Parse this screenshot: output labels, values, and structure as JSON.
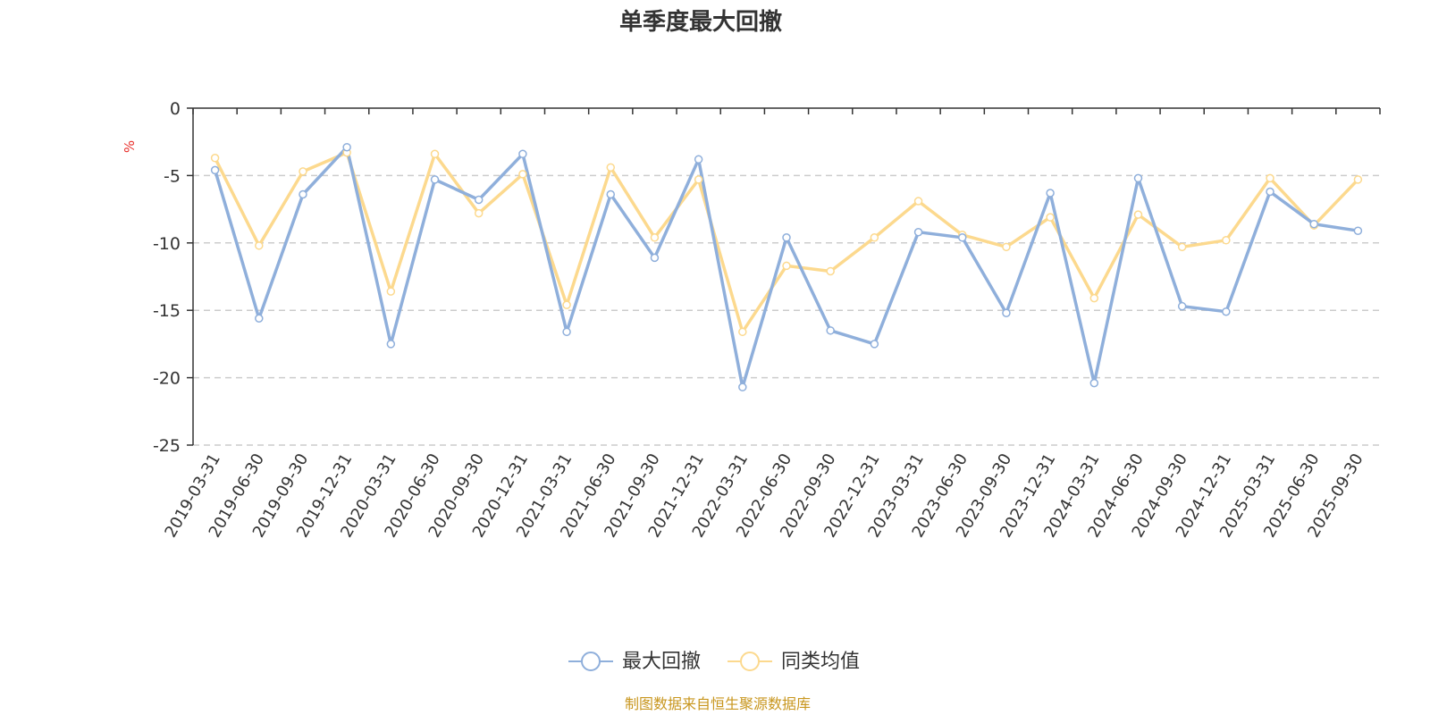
{
  "chart_data": {
    "type": "line",
    "title": "单季度最大回撤",
    "ylabel": "%",
    "ylim": [
      -25,
      0
    ],
    "yticks": [
      0,
      -5,
      -10,
      -15,
      -20,
      -25
    ],
    "grid": "horizontal dashed",
    "legend_position": "bottom-center",
    "categories": [
      "2019-03-31",
      "2019-06-30",
      "2019-09-30",
      "2019-12-31",
      "2020-03-31",
      "2020-06-30",
      "2020-09-30",
      "2020-12-31",
      "2021-03-31",
      "2021-06-30",
      "2021-09-30",
      "2021-12-31",
      "2022-03-31",
      "2022-06-30",
      "2022-09-30",
      "2022-12-31",
      "2023-03-31",
      "2023-06-30",
      "2023-09-30",
      "2023-12-31",
      "2024-03-31",
      "2024-06-30",
      "2024-09-30",
      "2024-12-31",
      "2025-03-31",
      "2025-06-30",
      "2025-09-30"
    ],
    "series": [
      {
        "name": "最大回撤",
        "color": "#8fafdb",
        "values": [
          -4.6,
          -15.6,
          -6.4,
          -2.9,
          -17.5,
          -5.3,
          -6.8,
          -3.4,
          -16.6,
          -6.4,
          -11.1,
          -3.8,
          -20.7,
          -9.6,
          -16.5,
          -17.5,
          -9.2,
          -9.6,
          -15.2,
          -6.3,
          -20.4,
          -5.2,
          -14.7,
          -15.1,
          -6.2,
          -8.6,
          -9.1
        ]
      },
      {
        "name": "同类均值",
        "color": "#fcd98e",
        "values": [
          -3.7,
          -10.2,
          -4.7,
          -3.3,
          -13.6,
          -3.4,
          -7.8,
          -4.9,
          -14.6,
          -4.4,
          -9.6,
          -5.3,
          -16.6,
          -11.7,
          -12.1,
          -9.6,
          -6.9,
          -9.4,
          -10.3,
          -8.1,
          -14.1,
          -7.9,
          -10.3,
          -9.8,
          -5.2,
          -8.7,
          -5.3
        ]
      }
    ],
    "source": "制图数据来自恒生聚源数据库"
  }
}
